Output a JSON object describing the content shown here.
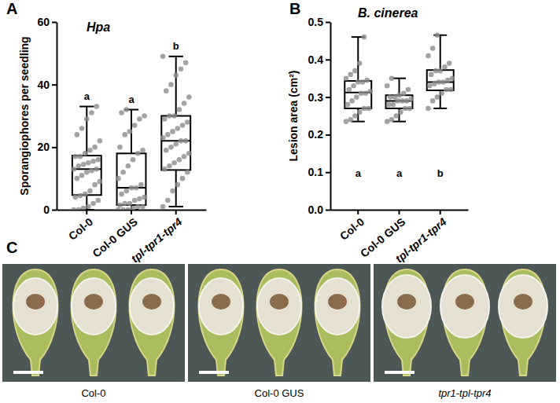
{
  "chart_data": [
    {
      "type": "box",
      "panel_label": "A",
      "title": "Hpa",
      "y_label": "Sporangiophores per seedling",
      "categories": [
        "Col-0",
        "Col-0 GUS",
        "tpl-tpr1-tpr4"
      ],
      "annotations": [
        "a",
        "a",
        "b"
      ],
      "ylim": [
        0,
        60
      ],
      "yticks": [
        0,
        20,
        40,
        60
      ],
      "boxes": [
        {
          "min": 0,
          "q1": 4.7,
          "median": 13,
          "q3": 17.3,
          "max": 33,
          "points": [
            0,
            0,
            0.5,
            1,
            2,
            3,
            4,
            4.5,
            5,
            6,
            8,
            9,
            10,
            11,
            12,
            12.5,
            13,
            13,
            14,
            14.5,
            15,
            15.5,
            16,
            17,
            17,
            18,
            19,
            20,
            22,
            24,
            26,
            29,
            31,
            33
          ]
        },
        {
          "min": 0,
          "q1": 1.5,
          "median": 7,
          "q3": 18,
          "max": 32,
          "points": [
            0,
            0,
            0,
            0.5,
            1,
            1,
            1.5,
            2,
            2,
            3,
            3.5,
            4,
            5,
            6,
            7,
            7,
            8,
            10,
            12,
            14,
            16,
            18,
            19,
            20,
            24,
            25,
            27,
            29,
            30,
            31,
            32
          ]
        },
        {
          "min": 1,
          "q1": 12.7,
          "median": 22,
          "q3": 30,
          "max": 49,
          "points": [
            1,
            3,
            6,
            8,
            10,
            12,
            13,
            14,
            15,
            16,
            17,
            18,
            19,
            20,
            21,
            22,
            22,
            23,
            24,
            25,
            26,
            27,
            28,
            29,
            30,
            30,
            32,
            34,
            36,
            38,
            40,
            43,
            45,
            47,
            49
          ]
        }
      ]
    },
    {
      "type": "box",
      "panel_label": "B",
      "title": "B. cinerea",
      "y_label": "Lesion area (cm²)",
      "categories": [
        "Col-0",
        "Col-0 GUS",
        "tpl-tpr1-tpr4"
      ],
      "annotations": [
        "a",
        "a",
        "b"
      ],
      "ylim": [
        0,
        0.5
      ],
      "yticks": [
        {
          "value": 0,
          "label": "0.0"
        },
        0.1,
        0.2,
        0.3,
        0.4,
        0.5
      ],
      "boxes": [
        {
          "min": 0.235,
          "q1": 0.27,
          "median": 0.312,
          "q3": 0.343,
          "max": 0.46,
          "points": [
            0.235,
            0.24,
            0.25,
            0.26,
            0.27,
            0.27,
            0.28,
            0.29,
            0.3,
            0.31,
            0.31,
            0.315,
            0.32,
            0.33,
            0.34,
            0.34,
            0.345,
            0.35,
            0.36,
            0.37,
            0.39,
            0.46
          ]
        },
        {
          "min": 0.235,
          "q1": 0.27,
          "median": 0.29,
          "q3": 0.305,
          "max": 0.35,
          "points": [
            0.235,
            0.24,
            0.25,
            0.26,
            0.27,
            0.27,
            0.28,
            0.28,
            0.29,
            0.29,
            0.29,
            0.295,
            0.3,
            0.3,
            0.305,
            0.31,
            0.32,
            0.33,
            0.35
          ]
        },
        {
          "min": 0.27,
          "q1": 0.318,
          "median": 0.34,
          "q3": 0.372,
          "max": 0.465,
          "points": [
            0.27,
            0.29,
            0.3,
            0.31,
            0.32,
            0.32,
            0.33,
            0.335,
            0.34,
            0.34,
            0.345,
            0.35,
            0.36,
            0.37,
            0.37,
            0.38,
            0.39,
            0.41,
            0.43,
            0.465
          ]
        }
      ]
    }
  ],
  "images": {
    "panel_label": "C",
    "captions": [
      "Col-0",
      "Col-0 GUS",
      "tpr1-tpl-tpr4"
    ]
  }
}
